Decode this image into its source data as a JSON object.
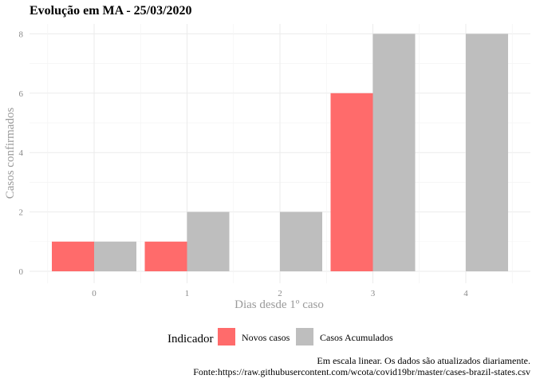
{
  "chart_data": {
    "type": "bar",
    "title": "Evolução em MA  -  25/03/2020",
    "xlabel": "Dias desde 1º caso",
    "ylabel": "Casos confirmados",
    "categories": [
      "0",
      "1",
      "2",
      "3",
      "4"
    ],
    "xticks": [
      "0",
      "1",
      "2",
      "3",
      "4"
    ],
    "yticks": [
      "0",
      "2",
      "4",
      "6",
      "8"
    ],
    "ylim": [
      0,
      8.4
    ],
    "grid": true,
    "legend": {
      "title": "Indicador",
      "position": "bottom"
    },
    "series": [
      {
        "name": "Novos casos",
        "color": "#ff6b6b",
        "values": [
          1,
          1,
          0,
          6,
          0
        ]
      },
      {
        "name": "Casos Acumulados",
        "color": "#bebebe",
        "values": [
          1,
          2,
          2,
          8,
          8
        ]
      }
    ],
    "caption": [
      "Em escala linear. Os dados são atualizados diariamente.",
      "Fonte:https://raw.githubusercontent.com/wcota/covid19br/master/cases-brazil-states.csv"
    ]
  }
}
